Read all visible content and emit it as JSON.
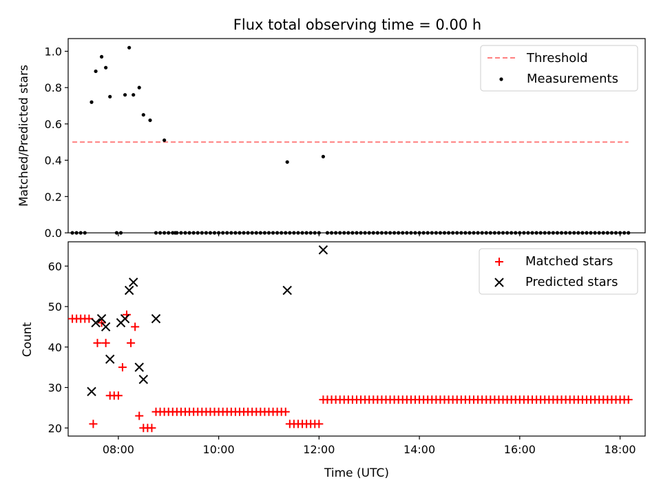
{
  "chart_data": [
    {
      "type": "scatter",
      "title": "Flux total observing time = 0.00 h",
      "xlabel": "",
      "ylabel": "Matched/Predicted stars",
      "xlim": [
        "07:00",
        "18:30"
      ],
      "ylim": [
        0,
        1.07
      ],
      "yticks": [
        "0.0",
        "0.2",
        "0.4",
        "0.6",
        "0.8",
        "1.0"
      ],
      "grid": false,
      "legend": "top-right",
      "series": [
        {
          "name": "Threshold",
          "kind": "dashed-line",
          "color": "#ff7f7f",
          "x": [
            "07:05",
            "18:10"
          ],
          "y": [
            0.5,
            0.5
          ]
        },
        {
          "name": "Measurements",
          "kind": "dot",
          "color": "#000000",
          "x": [
            "07:05",
            "07:10",
            "07:15",
            "07:20",
            "07:28",
            "07:33",
            "07:40",
            "07:45",
            "07:50",
            "07:58",
            "08:03",
            "08:08",
            "08:13",
            "08:18",
            "08:25",
            "08:30",
            "08:38",
            "08:45",
            "08:55",
            "09:08",
            "11:22",
            "12:05"
          ],
          "y": [
            0,
            0,
            0,
            0,
            0.72,
            0.89,
            0.97,
            0.91,
            0.75,
            0,
            0,
            0.76,
            1.02,
            0.76,
            0.8,
            0.65,
            0.62,
            0,
            0.51,
            0,
            0.39,
            0.42
          ]
        },
        {
          "name": "Measurements-zero-run-1",
          "kind": "dot-run",
          "color": "#000000",
          "y": 0,
          "from": "08:50",
          "to": "11:20",
          "step_min": 5
        },
        {
          "name": "Measurements-zero-run-2",
          "kind": "dot-run",
          "color": "#000000",
          "y": 0,
          "from": "11:25",
          "to": "12:00",
          "step_min": 5
        },
        {
          "name": "Measurements-zero-run-3",
          "kind": "dot-run",
          "color": "#000000",
          "y": 0,
          "from": "12:10",
          "to": "18:10",
          "step_min": 5
        }
      ]
    },
    {
      "type": "scatter",
      "title": "",
      "xlabel": "Time (UTC)",
      "ylabel": "Count",
      "xlim": [
        "07:00",
        "18:30"
      ],
      "ylim": [
        18,
        66
      ],
      "yticks": [
        "20",
        "30",
        "40",
        "50",
        "60"
      ],
      "xticks": [
        "08:00",
        "10:00",
        "12:00",
        "14:00",
        "16:00",
        "18:00"
      ],
      "grid": false,
      "legend": "top-right",
      "series": [
        {
          "name": "Matched stars",
          "kind": "plus",
          "color": "#ff0000",
          "x": [
            "07:05",
            "07:10",
            "07:15",
            "07:20",
            "07:25",
            "07:30",
            "07:35",
            "07:40",
            "07:45",
            "07:50",
            "07:55",
            "08:00",
            "08:05",
            "08:10",
            "08:15",
            "08:20",
            "08:25",
            "08:30",
            "08:35",
            "08:40",
            "08:45",
            "08:50"
          ],
          "y": [
            47,
            47,
            47,
            47,
            47,
            21,
            41,
            46,
            41,
            28,
            28,
            28,
            35,
            48,
            41,
            45,
            23,
            20,
            20,
            20,
            24,
            24
          ]
        },
        {
          "name": "Matched-run-24",
          "kind": "plus-run",
          "color": "#ff0000",
          "y": 24,
          "from": "08:55",
          "to": "11:20",
          "step_min": 5
        },
        {
          "name": "Matched-run-21",
          "kind": "plus-run",
          "color": "#ff0000",
          "y": 21,
          "from": "11:25",
          "to": "12:00",
          "step_min": 5
        },
        {
          "name": "Matched-run-27",
          "kind": "plus-run",
          "color": "#ff0000",
          "y": 27,
          "from": "12:05",
          "to": "18:10",
          "step_min": 5
        },
        {
          "name": "Predicted stars",
          "kind": "cross",
          "color": "#000000",
          "x": [
            "07:28",
            "07:33",
            "07:40",
            "07:45",
            "07:50",
            "08:03",
            "08:08",
            "08:13",
            "08:18",
            "08:25",
            "08:30",
            "08:45",
            "11:22",
            "12:05"
          ],
          "y": [
            29,
            46,
            47,
            45,
            37,
            46,
            47,
            54,
            56,
            35,
            32,
            47,
            54,
            64
          ]
        }
      ]
    }
  ]
}
